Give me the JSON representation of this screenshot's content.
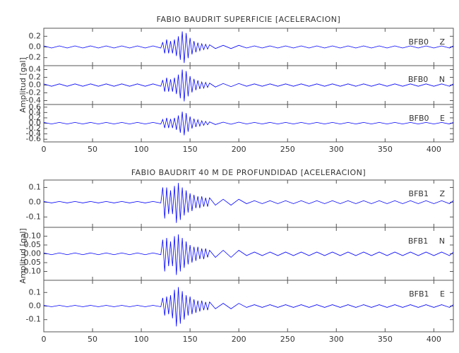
{
  "chart_data": [
    {
      "type": "line",
      "title": "FABIO BAUDRIT SUPERFICIE [ACELERACION]",
      "y_label": "Amplitud [gal]",
      "color": "#0000ff",
      "xlim": [
        0,
        420
      ],
      "xticks": [
        0,
        50,
        100,
        150,
        200,
        250,
        300,
        350,
        400
      ],
      "x": [
        0,
        8,
        16,
        24,
        32,
        40,
        48,
        56,
        64,
        72,
        80,
        88,
        96,
        104,
        112,
        120,
        122,
        124,
        126,
        128,
        130,
        132,
        134,
        136,
        138,
        140,
        142,
        144,
        146,
        148,
        150,
        152,
        154,
        156,
        158,
        160,
        162,
        164,
        166,
        168,
        170,
        176,
        184,
        192,
        200,
        208,
        216,
        224,
        232,
        240,
        248,
        256,
        264,
        272,
        280,
        288,
        296,
        304,
        312,
        320,
        328,
        336,
        344,
        352,
        360,
        368,
        376,
        384,
        392,
        400,
        408,
        416,
        420
      ],
      "series": [
        {
          "name": "BFB0 Z",
          "ylim": [
            -0.35,
            0.35
          ],
          "yticks": [
            -0.2,
            {
              "value": 0,
              "label": "0.0"
            },
            0.2
          ],
          "values": [
            0.02,
            -0.02,
            0.02,
            -0.02,
            0.02,
            -0.02,
            0.02,
            -0.02,
            0.02,
            -0.02,
            0.02,
            -0.02,
            0.02,
            -0.02,
            0.02,
            -0.02,
            0.09,
            -0.12,
            0.14,
            -0.12,
            0.11,
            -0.12,
            0.14,
            -0.17,
            0.2,
            -0.24,
            0.29,
            -0.3,
            0.26,
            -0.21,
            0.17,
            -0.14,
            0.11,
            -0.1,
            0.08,
            -0.07,
            0.06,
            -0.05,
            0.05,
            -0.04,
            0.04,
            -0.03,
            0.03,
            -0.03,
            0.03,
            -0.02,
            0.02,
            -0.02,
            0.02,
            -0.02,
            0.02,
            -0.02,
            0.02,
            -0.02,
            0.02,
            -0.02,
            0.02,
            -0.02,
            0.02,
            -0.02,
            0.02,
            -0.02,
            0.02,
            -0.02,
            0.02,
            -0.02,
            0.02,
            -0.02,
            0.02,
            -0.02,
            0.02,
            -0.02,
            0.02
          ]
        },
        {
          "name": "BFB0 N",
          "ylim": [
            -0.5,
            0.5
          ],
          "yticks": [
            -0.4,
            -0.2,
            {
              "value": 0,
              "label": "0.0"
            },
            0.2,
            0.4
          ],
          "values": [
            0.03,
            -0.03,
            0.03,
            -0.03,
            0.03,
            -0.03,
            0.03,
            -0.03,
            0.03,
            -0.03,
            0.03,
            -0.03,
            0.03,
            -0.03,
            0.03,
            -0.03,
            0.13,
            -0.17,
            0.19,
            -0.17,
            0.15,
            -0.17,
            0.19,
            -0.23,
            0.27,
            -0.34,
            0.4,
            -0.42,
            0.36,
            -0.29,
            0.23,
            -0.19,
            0.16,
            -0.13,
            0.12,
            -0.1,
            0.08,
            -0.08,
            0.07,
            -0.06,
            0.05,
            -0.05,
            0.04,
            -0.04,
            0.04,
            -0.03,
            0.03,
            -0.03,
            0.03,
            -0.03,
            0.03,
            -0.03,
            0.03,
            -0.03,
            0.03,
            -0.03,
            0.03,
            -0.03,
            0.03,
            -0.03,
            0.03,
            -0.03,
            0.03,
            -0.03,
            0.03,
            -0.03,
            0.03,
            -0.03,
            0.03,
            -0.03,
            0.03,
            -0.03,
            0.03
          ]
        },
        {
          "name": "BFB0 E",
          "ylim": [
            -0.7,
            0.7
          ],
          "yticks": [
            -0.6,
            -0.4,
            -0.2,
            {
              "value": 0,
              "label": "0.0"
            },
            0.2,
            0.4,
            0.6
          ],
          "values": [
            0.03,
            -0.03,
            0.03,
            -0.03,
            0.03,
            -0.03,
            0.03,
            -0.03,
            0.03,
            -0.03,
            0.03,
            -0.03,
            0.03,
            -0.03,
            0.03,
            -0.03,
            0.14,
            -0.18,
            0.2,
            -0.18,
            0.16,
            -0.18,
            0.2,
            -0.25,
            0.29,
            -0.36,
            0.43,
            -0.45,
            0.38,
            -0.32,
            0.25,
            -0.2,
            0.17,
            -0.14,
            0.13,
            -0.11,
            0.09,
            -0.08,
            0.07,
            -0.06,
            0.05,
            -0.05,
            0.04,
            -0.04,
            0.04,
            -0.03,
            0.03,
            -0.03,
            0.03,
            -0.03,
            0.03,
            -0.03,
            0.03,
            -0.03,
            0.03,
            -0.03,
            0.03,
            -0.03,
            0.03,
            -0.03,
            0.03,
            -0.03,
            0.03,
            -0.03,
            0.03,
            -0.03,
            0.03,
            -0.03,
            0.03,
            -0.03,
            0.03,
            -0.03,
            0.03
          ]
        }
      ]
    },
    {
      "type": "line",
      "title": "FABIO BAUDRIT 40 M DE PROFUNDIDAD [ACELERACION]",
      "y_label": "Amplitud [gal]",
      "color": "#0000ff",
      "xlim": [
        0,
        420
      ],
      "xticks": [
        0,
        50,
        100,
        150,
        200,
        250,
        300,
        350,
        400
      ],
      "x": [
        0,
        8,
        16,
        24,
        32,
        40,
        48,
        56,
        64,
        72,
        80,
        88,
        96,
        104,
        112,
        120,
        122,
        124,
        126,
        128,
        130,
        132,
        134,
        136,
        138,
        140,
        142,
        144,
        146,
        148,
        150,
        152,
        154,
        156,
        158,
        160,
        162,
        164,
        166,
        168,
        170,
        176,
        184,
        192,
        200,
        208,
        216,
        224,
        232,
        240,
        248,
        256,
        264,
        272,
        280,
        288,
        296,
        304,
        312,
        320,
        328,
        336,
        344,
        352,
        360,
        368,
        376,
        384,
        392,
        400,
        408,
        416,
        420
      ],
      "series": [
        {
          "name": "BFB1 Z",
          "ylim": [
            -0.17,
            0.15
          ],
          "yticks": [
            -0.1,
            {
              "value": 0,
              "label": "0.0"
            },
            0.1
          ],
          "values": [
            0.005,
            -0.005,
            0.005,
            -0.005,
            0.005,
            -0.005,
            0.005,
            -0.005,
            0.005,
            -0.005,
            0.005,
            -0.005,
            0.005,
            -0.005,
            0.005,
            -0.005,
            0.1,
            -0.11,
            0.1,
            -0.08,
            0.08,
            -0.08,
            0.11,
            -0.14,
            0.13,
            -0.12,
            0.1,
            -0.09,
            0.08,
            -0.07,
            0.06,
            -0.06,
            0.05,
            -0.04,
            0.04,
            -0.04,
            0.04,
            -0.03,
            0.03,
            -0.03,
            0.03,
            -0.02,
            0.02,
            -0.02,
            0.02,
            -0.01,
            0.01,
            -0.01,
            0.01,
            -0.01,
            0.01,
            -0.01,
            0.01,
            -0.01,
            0.01,
            -0.01,
            0.01,
            -0.01,
            0.01,
            -0.01,
            0.01,
            -0.01,
            0.01,
            -0.01,
            0.01,
            -0.01,
            0.01,
            -0.01,
            0.01,
            -0.01,
            0.01,
            -0.01,
            0.01
          ]
        },
        {
          "name": "BFB1 N",
          "ylim": [
            -0.15,
            0.15
          ],
          "yticks": [
            {
              "value": -0.1,
              "label": "-0.10"
            },
            -0.05,
            {
              "value": 0,
              "label": "0.00"
            },
            0.05,
            {
              "value": 0.1,
              "label": "0.10"
            }
          ],
          "values": [
            0.005,
            -0.005,
            0.005,
            -0.005,
            0.005,
            -0.005,
            0.005,
            -0.005,
            0.005,
            -0.005,
            0.005,
            -0.005,
            0.005,
            -0.005,
            0.005,
            -0.005,
            0.08,
            -0.1,
            0.09,
            -0.07,
            0.07,
            -0.07,
            0.1,
            -0.12,
            0.11,
            -0.1,
            0.09,
            -0.08,
            0.07,
            -0.06,
            0.05,
            -0.05,
            0.04,
            -0.04,
            0.04,
            -0.03,
            0.03,
            -0.03,
            0.03,
            -0.02,
            0.02,
            -0.02,
            0.02,
            -0.02,
            0.02,
            -0.01,
            0.01,
            -0.01,
            0.01,
            -0.01,
            0.01,
            -0.01,
            0.01,
            -0.01,
            0.01,
            -0.01,
            0.01,
            -0.01,
            0.01,
            -0.01,
            0.01,
            -0.01,
            0.01,
            -0.01,
            0.01,
            -0.01,
            0.01,
            -0.01,
            0.01,
            -0.01,
            0.01,
            -0.01,
            0.01
          ]
        },
        {
          "name": "BFB1 E",
          "ylim": [
            -0.19,
            0.19
          ],
          "yticks": [
            -0.1,
            {
              "value": 0,
              "label": "0.0"
            },
            0.1
          ],
          "values": [
            0.005,
            -0.005,
            0.005,
            -0.005,
            0.005,
            -0.005,
            0.005,
            -0.005,
            0.005,
            -0.005,
            0.005,
            -0.005,
            0.005,
            -0.005,
            0.005,
            -0.005,
            0.06,
            -0.07,
            0.07,
            -0.06,
            0.08,
            -0.09,
            0.12,
            -0.15,
            0.14,
            -0.13,
            0.11,
            -0.1,
            0.08,
            -0.07,
            0.07,
            -0.06,
            0.05,
            -0.05,
            0.04,
            -0.04,
            0.04,
            -0.03,
            0.03,
            -0.03,
            0.03,
            -0.02,
            0.02,
            -0.02,
            0.02,
            -0.01,
            0.01,
            -0.01,
            0.01,
            -0.01,
            0.01,
            -0.01,
            0.01,
            -0.01,
            0.01,
            -0.01,
            0.01,
            -0.01,
            0.01,
            -0.01,
            0.01,
            -0.01,
            0.01,
            -0.01,
            0.01,
            -0.01,
            0.01,
            -0.01,
            0.01,
            -0.01,
            0.01,
            -0.01,
            0.01
          ]
        }
      ]
    }
  ]
}
